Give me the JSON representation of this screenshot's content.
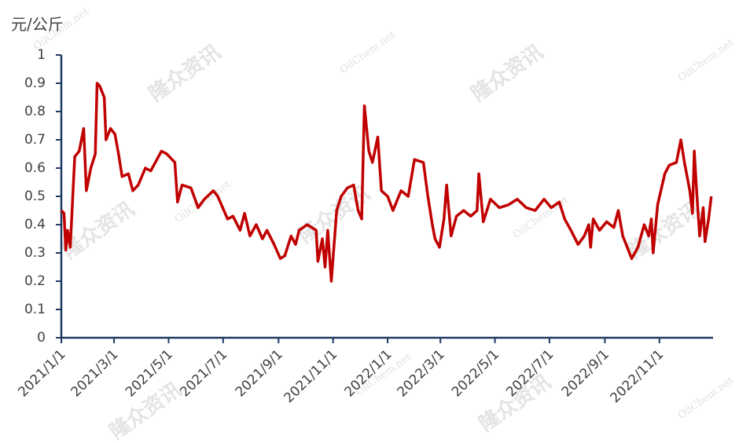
{
  "chart_data": {
    "type": "line",
    "y_label": "元/公斤",
    "watermarks": [
      "隆众资讯",
      "OilChem.net"
    ],
    "x": [
      "2021/1/1",
      "2021/1/4",
      "2021/1/6",
      "2021/1/8",
      "2021/1/11",
      "2021/1/16",
      "2021/1/21",
      "2021/1/26",
      "2021/1/29",
      "2021/2/3",
      "2021/2/8",
      "2021/2/10",
      "2021/2/13",
      "2021/2/18",
      "2021/2/20",
      "2021/2/25",
      "2021/3/2",
      "2021/3/6",
      "2021/3/10",
      "2021/3/17",
      "2021/3/22",
      "2021/3/28",
      "2021/4/5",
      "2021/4/11",
      "2021/4/23",
      "2021/4/29",
      "2021/5/8",
      "2021/5/11",
      "2021/5/16",
      "2021/5/26",
      "2021/6/3",
      "2021/6/10",
      "2021/6/20",
      "2021/6/25",
      "2021/7/6",
      "2021/7/12",
      "2021/7/20",
      "2021/7/25",
      "2021/7/31",
      "2021/8/7",
      "2021/8/14",
      "2021/8/19",
      "2021/8/27",
      "2021/9/3",
      "2021/9/8",
      "2021/9/15",
      "2021/9/20",
      "2021/9/24",
      "2021/10/3",
      "2021/10/13",
      "2021/10/15",
      "2021/10/20",
      "2021/10/23",
      "2021/10/26",
      "2021/10/30",
      "2021/11/5",
      "2021/11/10",
      "2021/11/17",
      "2021/11/24",
      "2021/11/29",
      "2021/12/3",
      "2021/12/6",
      "2021/12/11",
      "2021/12/15",
      "2021/12/21",
      "2021/12/25",
      "2022/1/1",
      "2022/1/7",
      "2022/1/16",
      "2022/1/24",
      "2022/1/31",
      "2022/2/10",
      "2022/2/15",
      "2022/2/20",
      "2022/2/23",
      "2022/2/28",
      "2022/3/5",
      "2022/3/8",
      "2022/3/13",
      "2022/3/19",
      "2022/3/27",
      "2022/4/4",
      "2022/4/11",
      "2022/4/13",
      "2022/4/18",
      "2022/4/26",
      "2022/5/6",
      "2022/5/16",
      "2022/5/26",
      "2022/6/5",
      "2022/6/15",
      "2022/6/25",
      "2022/7/3",
      "2022/7/12",
      "2022/7/18",
      "2022/7/25",
      "2022/8/2",
      "2022/8/9",
      "2022/8/14",
      "2022/8/16",
      "2022/8/19",
      "2022/8/26",
      "2022/9/3",
      "2022/9/11",
      "2022/9/16",
      "2022/9/21",
      "2022/10/1",
      "2022/10/8",
      "2022/10/15",
      "2022/10/20",
      "2022/10/23",
      "2022/10/25",
      "2022/10/30",
      "2022/11/7",
      "2022/11/12",
      "2022/11/20",
      "2022/11/25",
      "2022/11/29",
      "2022/12/5",
      "2022/12/8",
      "2022/12/10",
      "2022/12/13",
      "2022/12/16",
      "2022/12/20",
      "2022/12/22",
      "2022/12/26",
      "2022/12/29"
    ],
    "series": [
      {
        "color": "#c00000",
        "values": [
          0.45,
          0.44,
          0.31,
          0.38,
          0.32,
          0.64,
          0.66,
          0.74,
          0.52,
          0.6,
          0.65,
          0.9,
          0.89,
          0.85,
          0.7,
          0.74,
          0.72,
          0.65,
          0.57,
          0.58,
          0.52,
          0.54,
          0.6,
          0.59,
          0.66,
          0.65,
          0.62,
          0.48,
          0.54,
          0.53,
          0.46,
          0.49,
          0.52,
          0.5,
          0.42,
          0.43,
          0.38,
          0.44,
          0.36,
          0.4,
          0.35,
          0.38,
          0.33,
          0.28,
          0.29,
          0.36,
          0.33,
          0.38,
          0.4,
          0.38,
          0.27,
          0.35,
          0.25,
          0.38,
          0.2,
          0.45,
          0.5,
          0.53,
          0.54,
          0.45,
          0.42,
          0.82,
          0.66,
          0.62,
          0.71,
          0.52,
          0.5,
          0.45,
          0.52,
          0.5,
          0.63,
          0.62,
          0.5,
          0.4,
          0.35,
          0.32,
          0.42,
          0.54,
          0.36,
          0.43,
          0.45,
          0.43,
          0.45,
          0.58,
          0.41,
          0.49,
          0.46,
          0.47,
          0.49,
          0.46,
          0.45,
          0.49,
          0.46,
          0.48,
          0.42,
          0.38,
          0.33,
          0.36,
          0.4,
          0.32,
          0.42,
          0.38,
          0.41,
          0.39,
          0.45,
          0.36,
          0.28,
          0.32,
          0.4,
          0.36,
          0.42,
          0.3,
          0.47,
          0.58,
          0.61,
          0.62,
          0.7,
          0.62,
          0.52,
          0.44,
          0.66,
          0.5,
          0.36,
          0.46,
          0.34,
          0.42,
          0.5
        ]
      }
    ],
    "xlim": [
      "2021/1/1",
      "2022/12/31"
    ],
    "xticks": [
      "2021/1/1",
      "2021/3/1",
      "2021/5/1",
      "2021/7/1",
      "2021/9/1",
      "2021/11/1",
      "2022/1/1",
      "2022/3/1",
      "2022/5/1",
      "2022/7/1",
      "2022/9/1",
      "2022/11/1"
    ],
    "ylim": [
      0,
      1
    ],
    "yticks": [
      0,
      0.1,
      0.2,
      0.3,
      0.4,
      0.5,
      0.6,
      0.7,
      0.8,
      0.9,
      1
    ]
  }
}
